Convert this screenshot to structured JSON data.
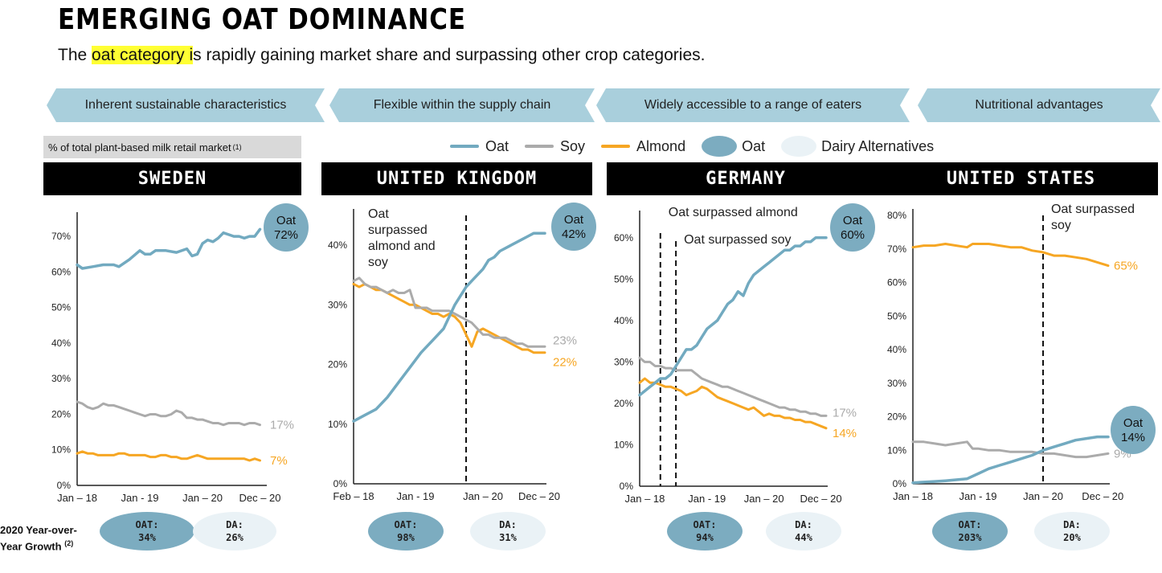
{
  "header": {
    "title": "EMERGING OAT DOMINANCE",
    "subtitle_pre": "The ",
    "subtitle_highlight": "oat category i",
    "subtitle_post": "s rapidly gaining market share and surpassing other crop categories."
  },
  "chevrons": [
    "Inherent sustainable characteristics",
    "Flexible within the supply chain",
    "Widely accessible to a range of eaters",
    "Nutritional advantages"
  ],
  "note": {
    "text": "% of total plant-based milk retail market",
    "sup": "(1)"
  },
  "legend": {
    "oat": "Oat",
    "soy": "Soy",
    "almond": "Almond",
    "oat_bubble": "Oat",
    "da_bubble": "Dairy Alternatives"
  },
  "colors": {
    "oat": "#72aac0",
    "soy": "#ababab",
    "almond": "#f6a623",
    "banner": "#000000",
    "chevron": "#a9cfdc",
    "oat_bubble": "#7cacc0",
    "da_bubble": "#eaf2f6"
  },
  "growth": {
    "label_line1": "2020 Year-over-",
    "label_line2": "Year Growth",
    "label_sup": "(2)",
    "items": [
      {
        "oat_label": "OAT:",
        "oat_value": "34%",
        "da_label": "DA:",
        "da_value": "26%"
      },
      {
        "oat_label": "OAT:",
        "oat_value": "98%",
        "da_label": "DA:",
        "da_value": "31%"
      },
      {
        "oat_label": "OAT:",
        "oat_value": "94%",
        "da_label": "DA:",
        "da_value": "44%"
      },
      {
        "oat_label": "OAT:",
        "oat_value": "203%",
        "da_label": "DA:",
        "da_value": "20%"
      }
    ]
  },
  "chart_data": [
    {
      "type": "line",
      "title": "SWEDEN",
      "ylim": [
        0,
        75
      ],
      "yticks": [
        0,
        10,
        20,
        30,
        40,
        50,
        60,
        70
      ],
      "ytick_labels": [
        "0%",
        "10%",
        "20%",
        "30%",
        "40%",
        "50%",
        "60%",
        "70%"
      ],
      "xlim": [
        0,
        36
      ],
      "xticks": [
        {
          "x": 0,
          "label": "Jan – 18"
        },
        {
          "x": 12,
          "label": "Jan - 19"
        },
        {
          "x": 24,
          "label": "Jan – 20"
        },
        {
          "x": 35,
          "label": "Dec – 20"
        }
      ],
      "series": [
        {
          "name": "Oat",
          "color": "#72aac0",
          "width": 3.5,
          "x": [
            0,
            1,
            3,
            5,
            7,
            8,
            10,
            12,
            13,
            14,
            15,
            17,
            19,
            21,
            22,
            23,
            24,
            25,
            26,
            27,
            28,
            29,
            30,
            31,
            32,
            33,
            34,
            35
          ],
          "y": [
            62,
            61,
            61.5,
            62,
            62,
            61.5,
            63.5,
            66,
            65,
            65,
            66,
            66,
            65.5,
            66.5,
            64.5,
            65,
            68,
            69,
            68.5,
            69.5,
            71,
            70.5,
            70,
            70,
            69.5,
            70,
            70,
            72
          ]
        },
        {
          "name": "Soy",
          "color": "#ababab",
          "width": 3,
          "x": [
            0,
            1,
            2,
            3,
            4,
            5,
            6,
            7,
            8,
            9,
            10,
            11,
            12,
            13,
            14,
            15,
            16,
            17,
            18,
            19,
            20,
            21,
            22,
            23,
            24,
            25,
            26,
            27,
            28,
            29,
            30,
            31,
            32,
            33,
            34,
            35
          ],
          "y": [
            23.5,
            23,
            22,
            21.5,
            22,
            23,
            22.5,
            22.5,
            22,
            21.5,
            21,
            20.5,
            20,
            19.5,
            20,
            20,
            19.5,
            19.5,
            20,
            21,
            20.5,
            19,
            19,
            18.5,
            18.5,
            18,
            17.5,
            17.5,
            17,
            17.5,
            17.5,
            17.5,
            17,
            17.5,
            17.5,
            17
          ]
        },
        {
          "name": "Almond",
          "color": "#f6a623",
          "width": 3,
          "x": [
            0,
            1,
            2,
            3,
            4,
            5,
            6,
            7,
            8,
            9,
            10,
            11,
            12,
            13,
            14,
            15,
            16,
            17,
            18,
            19,
            20,
            21,
            22,
            23,
            24,
            25,
            26,
            27,
            28,
            29,
            30,
            31,
            32,
            33,
            34,
            35
          ],
          "y": [
            9,
            9.5,
            9,
            9,
            8.5,
            8.5,
            8.5,
            8.5,
            9,
            9,
            8.5,
            8.5,
            8.5,
            8.5,
            8,
            8,
            8.5,
            8.5,
            8,
            8,
            7.5,
            7.5,
            8,
            8.5,
            8,
            7.5,
            7.5,
            7.5,
            7.5,
            7.5,
            7.5,
            7.5,
            7.5,
            7,
            7.5,
            7
          ]
        }
      ],
      "end_labels": [
        {
          "series": "Soy",
          "text": "17%"
        },
        {
          "series": "Almond",
          "text": "7%"
        }
      ],
      "oat_bubble": {
        "line1": "Oat",
        "line2": "72%"
      },
      "annotations": []
    },
    {
      "type": "line",
      "title": "UNITED KINGDOM",
      "ylim": [
        0,
        45
      ],
      "yticks": [
        0,
        10,
        20,
        30,
        40
      ],
      "ytick_labels": [
        "0%",
        "10%",
        "20%",
        "30%",
        "40%"
      ],
      "xlim": [
        0,
        34
      ],
      "xticks": [
        {
          "x": 0,
          "label": "Feb – 18"
        },
        {
          "x": 11,
          "label": "Jan - 19"
        },
        {
          "x": 23,
          "label": "Jan – 20"
        },
        {
          "x": 33,
          "label": "Dec – 20"
        }
      ],
      "series": [
        {
          "name": "Oat",
          "color": "#72aac0",
          "width": 3.5,
          "x": [
            0,
            2,
            4,
            6,
            8,
            10,
            12,
            14,
            16,
            18,
            20,
            21,
            22,
            23,
            24,
            25,
            26,
            28,
            30,
            31,
            32,
            33,
            34
          ],
          "y": [
            10.5,
            11.5,
            12.5,
            14.5,
            17,
            19.5,
            22,
            24,
            26,
            30,
            33,
            34,
            35,
            36,
            37.5,
            38,
            39,
            40,
            41,
            41.5,
            42,
            42,
            42
          ]
        },
        {
          "name": "Soy",
          "color": "#ababab",
          "width": 3,
          "x": [
            0,
            1,
            2,
            3,
            4,
            5,
            6,
            7,
            8,
            9,
            10,
            11,
            12,
            13,
            14,
            15,
            16,
            17,
            18,
            19,
            20,
            21,
            22,
            23,
            24,
            25,
            26,
            27,
            28,
            29,
            30,
            31,
            32,
            33,
            34
          ],
          "y": [
            34,
            34.5,
            33.5,
            33,
            33,
            32.5,
            32,
            32.5,
            32,
            32,
            32.5,
            29.5,
            29.5,
            29.5,
            29,
            29,
            29,
            29,
            28.5,
            28,
            27.5,
            27,
            26,
            25,
            25,
            24.5,
            24.5,
            24.5,
            24,
            23.5,
            23.5,
            23,
            23,
            23,
            23
          ]
        },
        {
          "name": "Almond",
          "color": "#f6a623",
          "width": 3,
          "x": [
            0,
            1,
            2,
            3,
            4,
            5,
            6,
            7,
            8,
            9,
            10,
            11,
            12,
            13,
            14,
            15,
            16,
            17,
            18,
            19,
            20,
            21,
            22,
            23,
            24,
            25,
            26,
            27,
            28,
            29,
            30,
            31,
            32,
            33,
            34
          ],
          "y": [
            33.5,
            33,
            33.5,
            33,
            32.5,
            32.5,
            32,
            31.5,
            31,
            30.5,
            30,
            30,
            29.5,
            29,
            28.5,
            28.5,
            28,
            28.5,
            28,
            27,
            25,
            23,
            25.5,
            26,
            25.5,
            25,
            24.5,
            24,
            23.5,
            23,
            22.5,
            22.5,
            22,
            22,
            22
          ]
        }
      ],
      "end_labels": [
        {
          "series": "Soy",
          "text": "23%"
        },
        {
          "series": "Almond",
          "text": "22%"
        }
      ],
      "oat_bubble": {
        "line1": "Oat",
        "line2": "42%"
      },
      "annotations": [
        {
          "x": 20,
          "lines": [
            "Oat",
            "surpassed",
            "almond and",
            "soy"
          ]
        }
      ]
    },
    {
      "type": "line",
      "title": "GERMANY",
      "ylim": [
        0,
        65
      ],
      "yticks": [
        0,
        10,
        20,
        30,
        40,
        50,
        60
      ],
      "ytick_labels": [
        "0%",
        "10%",
        "20%",
        "30%",
        "40%",
        "50%",
        "60%"
      ],
      "xlim": [
        0,
        36
      ],
      "xticks": [
        {
          "x": 1,
          "label": "Jan – 18"
        },
        {
          "x": 13,
          "label": "Jan - 19"
        },
        {
          "x": 24,
          "label": "Jan – 20"
        },
        {
          "x": 35,
          "label": "Dec – 20"
        }
      ],
      "series": [
        {
          "name": "Oat",
          "color": "#72aac0",
          "width": 3.5,
          "x": [
            0,
            1,
            2,
            3,
            4,
            5,
            6,
            7,
            8,
            9,
            10,
            11,
            12,
            13,
            14,
            15,
            16,
            17,
            18,
            19,
            20,
            21,
            22,
            23,
            24,
            25,
            26,
            27,
            28,
            29,
            30,
            31,
            32,
            33,
            34,
            35,
            36
          ],
          "y": [
            22,
            23,
            24,
            25,
            26,
            26,
            27,
            29,
            31,
            33,
            33,
            34,
            36,
            38,
            39,
            40,
            42,
            44,
            45,
            47,
            46,
            49,
            51,
            52,
            53,
            54,
            55,
            56,
            57,
            57,
            58,
            58,
            59,
            59,
            60,
            60,
            60
          ]
        },
        {
          "name": "Soy",
          "color": "#ababab",
          "width": 3,
          "x": [
            0,
            1,
            2,
            3,
            4,
            5,
            6,
            7,
            8,
            9,
            10,
            11,
            12,
            13,
            14,
            15,
            16,
            17,
            18,
            19,
            20,
            21,
            22,
            23,
            24,
            25,
            26,
            27,
            28,
            29,
            30,
            31,
            32,
            33,
            34,
            35,
            36
          ],
          "y": [
            31,
            30,
            30,
            29,
            29,
            28.5,
            28.5,
            28,
            28,
            28,
            28,
            27,
            26,
            25.5,
            25,
            24.5,
            24,
            24,
            23.5,
            23,
            22.5,
            22,
            21.5,
            21,
            20.5,
            20,
            19.5,
            19,
            19,
            18.5,
            18.5,
            18,
            18,
            17.5,
            17.5,
            17,
            17
          ]
        },
        {
          "name": "Almond",
          "color": "#f6a623",
          "width": 3,
          "x": [
            0,
            1,
            2,
            3,
            4,
            5,
            6,
            7,
            8,
            9,
            10,
            11,
            12,
            13,
            14,
            15,
            16,
            17,
            18,
            19,
            20,
            21,
            22,
            23,
            24,
            25,
            26,
            27,
            28,
            29,
            30,
            31,
            32,
            33,
            34,
            35,
            36
          ],
          "y": [
            25,
            26,
            25,
            25,
            24.5,
            24,
            24,
            23.5,
            23,
            22,
            22.5,
            23,
            24,
            23.5,
            22.5,
            21.5,
            21,
            20.5,
            20,
            19.5,
            19,
            18.5,
            19,
            18,
            17,
            17.5,
            17,
            17,
            16.5,
            16.5,
            16,
            16,
            15.5,
            15.5,
            15,
            14.5,
            14
          ]
        }
      ],
      "end_labels": [
        {
          "series": "Soy",
          "text": "17%"
        },
        {
          "series": "Almond",
          "text": "14%"
        }
      ],
      "oat_bubble": {
        "line1": "Oat",
        "line2": "60%"
      },
      "annotations": [
        {
          "x": 4,
          "lines": [
            "Oat surpassed almond"
          ]
        },
        {
          "x": 7,
          "lines": [
            "Oat surpassed soy"
          ]
        }
      ]
    },
    {
      "type": "line",
      "title": "UNITED STATES",
      "ylim": [
        0,
        80
      ],
      "yticks": [
        0,
        10,
        20,
        30,
        40,
        50,
        60,
        70,
        80
      ],
      "ytick_labels": [
        "0%",
        "10%",
        "20%",
        "30%",
        "40%",
        "50%",
        "60%",
        "70%",
        "80%"
      ],
      "xlim": [
        0,
        36
      ],
      "xticks": [
        {
          "x": 0,
          "label": "Jan – 18"
        },
        {
          "x": 12,
          "label": "Jan - 19"
        },
        {
          "x": 24,
          "label": "Jan – 20"
        },
        {
          "x": 35,
          "label": "Dec – 20"
        }
      ],
      "series": [
        {
          "name": "Oat",
          "color": "#72aac0",
          "width": 3.5,
          "x": [
            0,
            2,
            4,
            6,
            8,
            10,
            12,
            14,
            16,
            18,
            20,
            22,
            24,
            26,
            28,
            30,
            32,
            34,
            36
          ],
          "y": [
            0.3,
            0.5,
            0.7,
            0.9,
            1.2,
            1.5,
            3,
            4.5,
            5.5,
            6.5,
            7.5,
            8.5,
            10,
            11,
            12,
            13,
            13.5,
            14,
            14
          ]
        },
        {
          "name": "Soy",
          "color": "#ababab",
          "width": 3,
          "x": [
            0,
            2,
            4,
            6,
            8,
            10,
            11,
            12,
            14,
            16,
            18,
            20,
            22,
            24,
            26,
            28,
            30,
            32,
            34,
            36
          ],
          "y": [
            12.5,
            12.5,
            12,
            11.5,
            12,
            12.5,
            10.5,
            10.5,
            10,
            10,
            9.5,
            9.5,
            9.5,
            9,
            9,
            8.5,
            8,
            8,
            8.5,
            9
          ]
        },
        {
          "name": "Almond",
          "color": "#f6a623",
          "width": 3,
          "x": [
            0,
            2,
            4,
            6,
            8,
            10,
            11,
            12,
            14,
            16,
            18,
            20,
            22,
            24,
            26,
            28,
            30,
            32,
            34,
            36
          ],
          "y": [
            70.5,
            71,
            71,
            71.5,
            71,
            70.5,
            71.5,
            71.5,
            71.5,
            71,
            70.5,
            70.5,
            69.5,
            69,
            68,
            68,
            67.5,
            67,
            66,
            65
          ]
        }
      ],
      "end_labels": [
        {
          "series": "Soy",
          "text": "9%"
        },
        {
          "series": "Almond",
          "text": "65%"
        }
      ],
      "oat_bubble": {
        "line1": "Oat",
        "line2": "14%"
      },
      "annotations": [
        {
          "x": 24,
          "lines": [
            "Oat surpassed",
            "soy"
          ]
        }
      ]
    }
  ]
}
